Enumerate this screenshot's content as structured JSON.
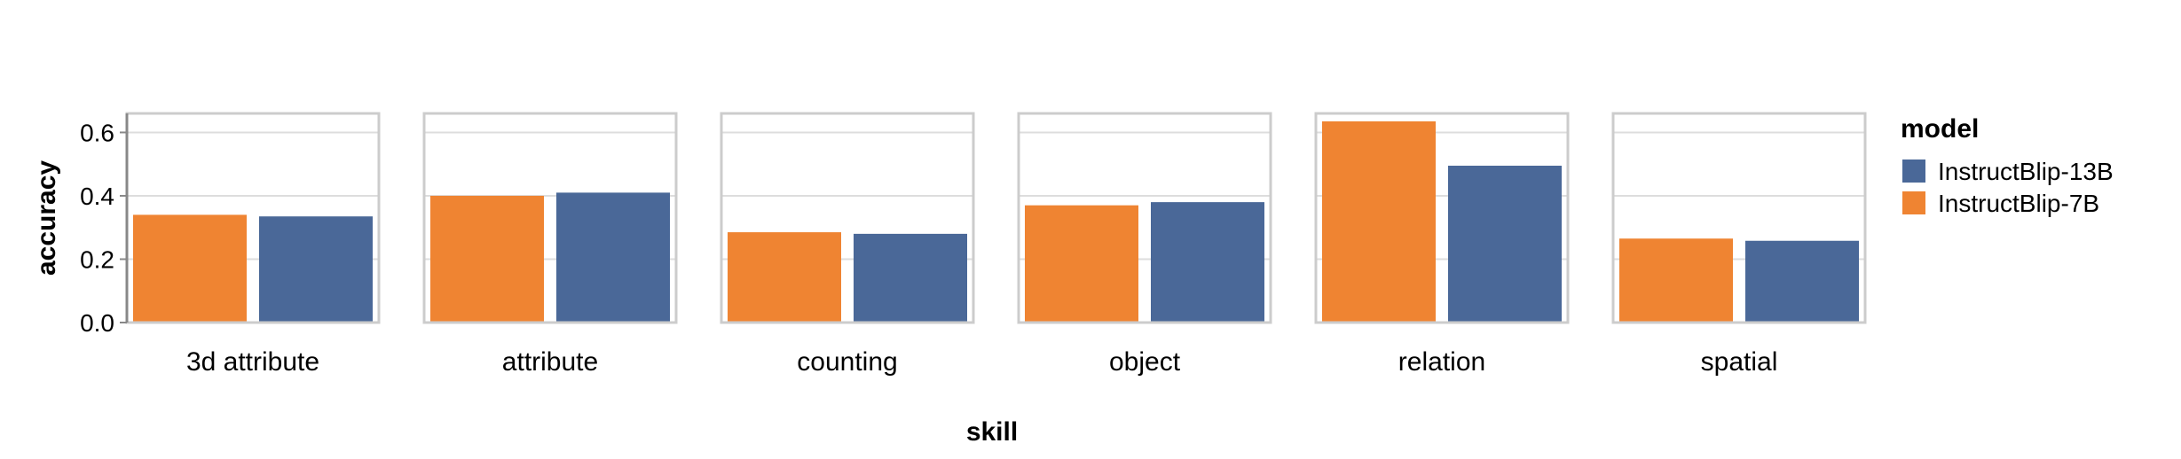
{
  "chart_data": {
    "type": "bar",
    "facet_by": "skill",
    "xlabel": "skill",
    "ylabel": "accuracy",
    "ylim": [
      0,
      0.66
    ],
    "y_ticks": [
      "0.0",
      "0.2",
      "0.4",
      "0.6"
    ],
    "y_tick_values": [
      0,
      0.2,
      0.4,
      0.6
    ],
    "grid": true,
    "legend_position": "right",
    "legend_title": "model",
    "categories": [
      "3d attribute",
      "attribute",
      "counting",
      "object",
      "relation",
      "spatial"
    ],
    "series": [
      {
        "name": "InstructBlip-7B",
        "color": "#ef8432",
        "values": [
          0.34,
          0.4,
          0.285,
          0.37,
          0.635,
          0.265
        ]
      },
      {
        "name": "InstructBlip-13B",
        "color": "#4a6898",
        "values": [
          0.335,
          0.41,
          0.28,
          0.38,
          0.495,
          0.258
        ]
      }
    ],
    "legend_order": [
      "InstructBlip-13B",
      "InstructBlip-7B"
    ]
  }
}
